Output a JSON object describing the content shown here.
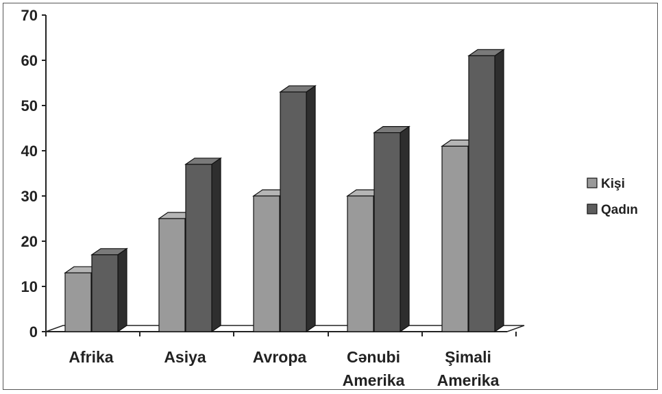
{
  "chart_data": {
    "type": "bar",
    "categories": [
      [
        "Afrika"
      ],
      [
        "Asiya"
      ],
      [
        "Avropa"
      ],
      [
        "Cənubi",
        "Amerika"
      ],
      [
        "Şimali",
        "Amerika"
      ]
    ],
    "series": [
      {
        "name": "Kişi",
        "values": [
          13,
          25,
          30,
          30,
          41
        ],
        "color": "#9a9a9a",
        "side_color": "#5a5a5a",
        "top_color": "#b5b5b5"
      },
      {
        "name": "Qadın",
        "values": [
          17,
          37,
          53,
          44,
          61
        ],
        "color": "#5e5e5e",
        "side_color": "#2e2e2e",
        "top_color": "#7a7a7a"
      }
    ],
    "ylim": [
      0,
      70
    ],
    "yticks": [
      0,
      10,
      20,
      30,
      40,
      50,
      60,
      70
    ],
    "xlabel": "",
    "ylabel": "",
    "title": "",
    "legend_position": "right",
    "grid": false
  }
}
